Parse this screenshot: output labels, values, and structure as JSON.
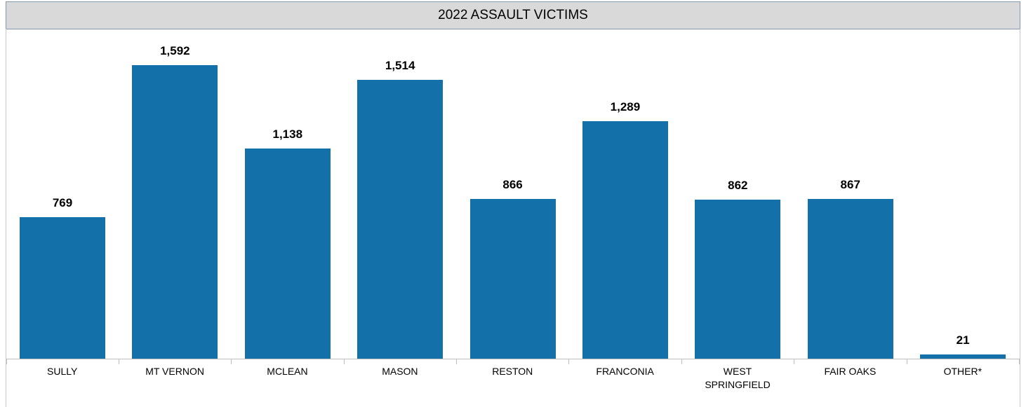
{
  "chart_data": {
    "type": "bar",
    "title": "2022 ASSAULT VICTIMS",
    "categories": [
      "SULLY",
      "MT VERNON",
      "MCLEAN",
      "MASON",
      "RESTON",
      "FRANCONIA",
      "WEST SPRINGFIELD",
      "FAIR OAKS",
      "OTHER*"
    ],
    "values": [
      769,
      1592,
      1138,
      1514,
      866,
      1289,
      862,
      867,
      21
    ],
    "value_labels": [
      "769",
      "1,592",
      "1,138",
      "1,514",
      "866",
      "1,289",
      "862",
      "867",
      "21"
    ],
    "color": "#1470a9"
  }
}
